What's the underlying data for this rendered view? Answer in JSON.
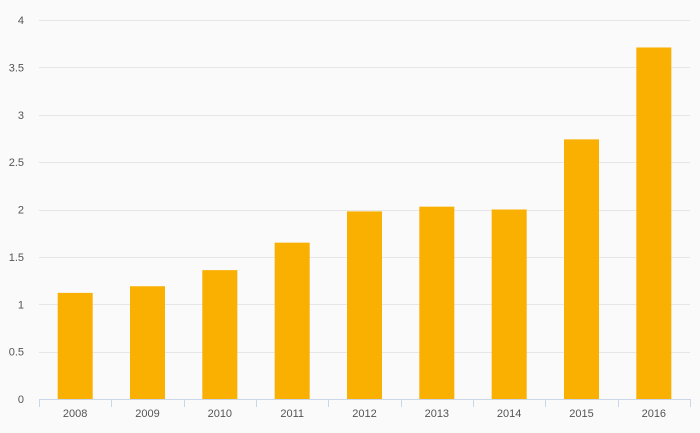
{
  "chart_data": {
    "type": "bar",
    "title": "",
    "xlabel": "",
    "ylabel": "",
    "categories": [
      "2008",
      "2009",
      "2010",
      "2011",
      "2012",
      "2013",
      "2014",
      "2015",
      "2016"
    ],
    "series": [
      {
        "values": [
          1.12,
          1.19,
          1.36,
          1.65,
          1.98,
          2.03,
          2.0,
          2.74,
          3.71
        ]
      }
    ],
    "ylim": [
      0,
      4
    ],
    "yticks": [
      "0",
      "0.5",
      "1",
      "1.5",
      "2",
      "2.5",
      "3",
      "3.5",
      "4"
    ],
    "grid": true,
    "legend": "none"
  },
  "colors": {
    "bar": "#f9b000",
    "grid": "#e6e6e6",
    "axis": "#ccd6eb",
    "background": "#fafafa"
  }
}
